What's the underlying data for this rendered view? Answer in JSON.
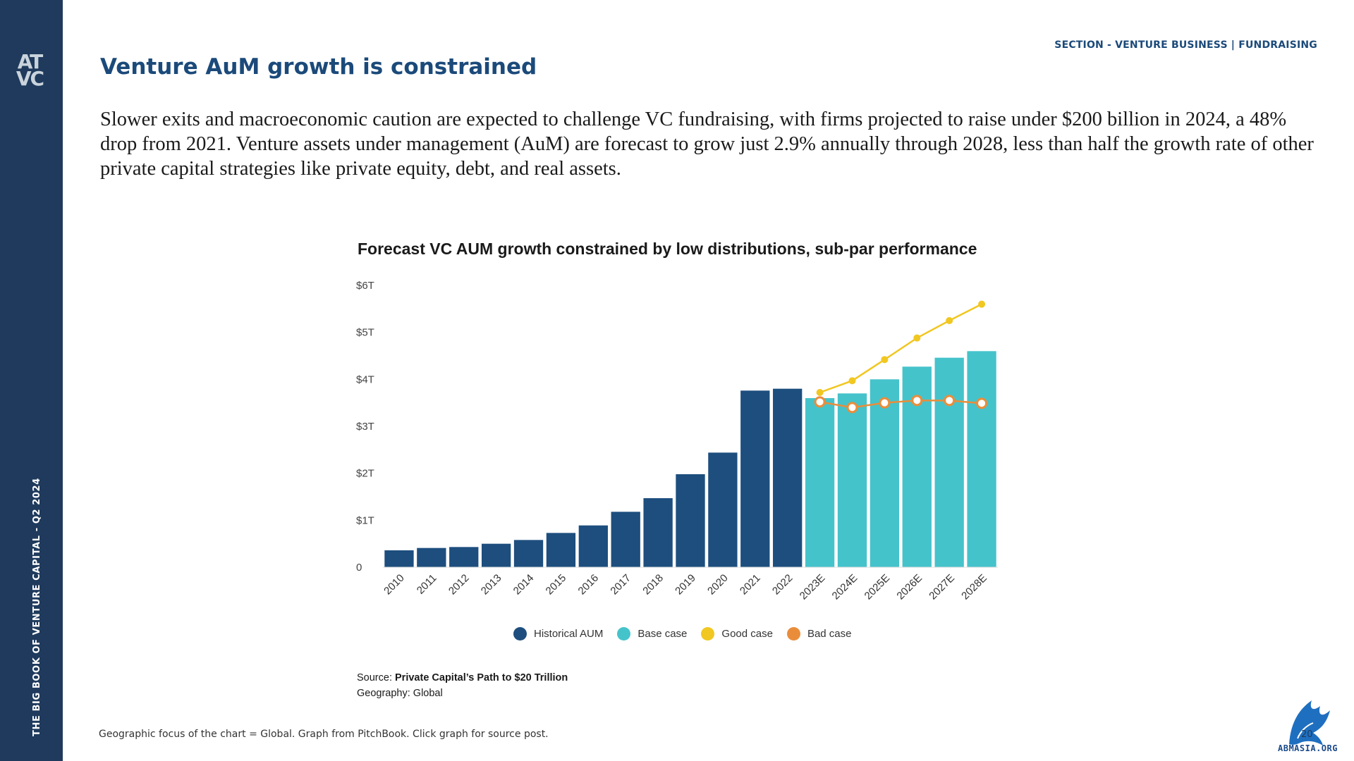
{
  "sidebar": {
    "logo_text": "AT VC",
    "vertical_text": "THE BIG BOOK OF VENTURE CAPITAL - Q2 2024"
  },
  "header": {
    "section": "SECTION - VENTURE BUSINESS | FUNDRAISING",
    "title": "Venture AuM growth is constrained"
  },
  "intro": "Slower exits and macroeconomic caution are expected to challenge VC fundraising, with firms projected to raise under $200 billion in 2024, a 48% drop from 2021. Venture assets under management (AuM) are forecast to grow just 2.9% annually through 2028, less than half the growth rate of other private capital strategies like private equity, debt, and real assets.",
  "chart_data": {
    "type": "bar",
    "title": "Forecast VC AUM growth constrained by low distributions, sub-par performance",
    "categories": [
      "2010",
      "2011",
      "2012",
      "2013",
      "2014",
      "2015",
      "2016",
      "2017",
      "2018",
      "2019",
      "2020",
      "2021",
      "2022",
      "2023E",
      "2024E",
      "2025E",
      "2026E",
      "2027E",
      "2028E"
    ],
    "ylim": [
      0,
      6
    ],
    "yticks": [
      0,
      1,
      2,
      3,
      4,
      5,
      6
    ],
    "ytick_labels": [
      "0",
      "$1T",
      "$2T",
      "$3T",
      "$4T",
      "$5T",
      "$6T"
    ],
    "grid": false,
    "legend_position": "bottom",
    "series": [
      {
        "name": "Historical AUM",
        "kind": "bar",
        "color": "#1d4e7e",
        "values": [
          0.36,
          0.41,
          0.43,
          0.5,
          0.58,
          0.73,
          0.89,
          1.18,
          1.47,
          1.98,
          2.44,
          3.76,
          3.8,
          null,
          null,
          null,
          null,
          null,
          null
        ]
      },
      {
        "name": "Base case",
        "kind": "bar",
        "color": "#45c3cb",
        "values": [
          null,
          null,
          null,
          null,
          null,
          null,
          null,
          null,
          null,
          null,
          null,
          null,
          null,
          3.6,
          3.7,
          4.0,
          4.27,
          4.46,
          4.6
        ]
      },
      {
        "name": "Good case",
        "kind": "line",
        "color": "#f1c721",
        "values": [
          null,
          null,
          null,
          null,
          null,
          null,
          null,
          null,
          null,
          null,
          null,
          null,
          null,
          3.72,
          3.97,
          4.42,
          4.88,
          5.25,
          5.6
        ]
      },
      {
        "name": "Bad case",
        "kind": "line",
        "color": "#ea8d3a",
        "values": [
          null,
          null,
          null,
          null,
          null,
          null,
          null,
          null,
          null,
          null,
          null,
          null,
          null,
          3.52,
          3.4,
          3.5,
          3.55,
          3.55,
          3.49
        ]
      }
    ]
  },
  "source": {
    "label": "Source:",
    "name": "Private Capital’s Path to $20 Trillion",
    "geography": "Geography: Global"
  },
  "footnote": "Geographic focus of the chart = Global. Graph from PitchBook. Click graph for source post.",
  "page_number": "20",
  "badge_text": "ABMASIA.ORG",
  "colors": {
    "sidebar": "#1f3a5c",
    "accent": "#1b4a7a"
  }
}
